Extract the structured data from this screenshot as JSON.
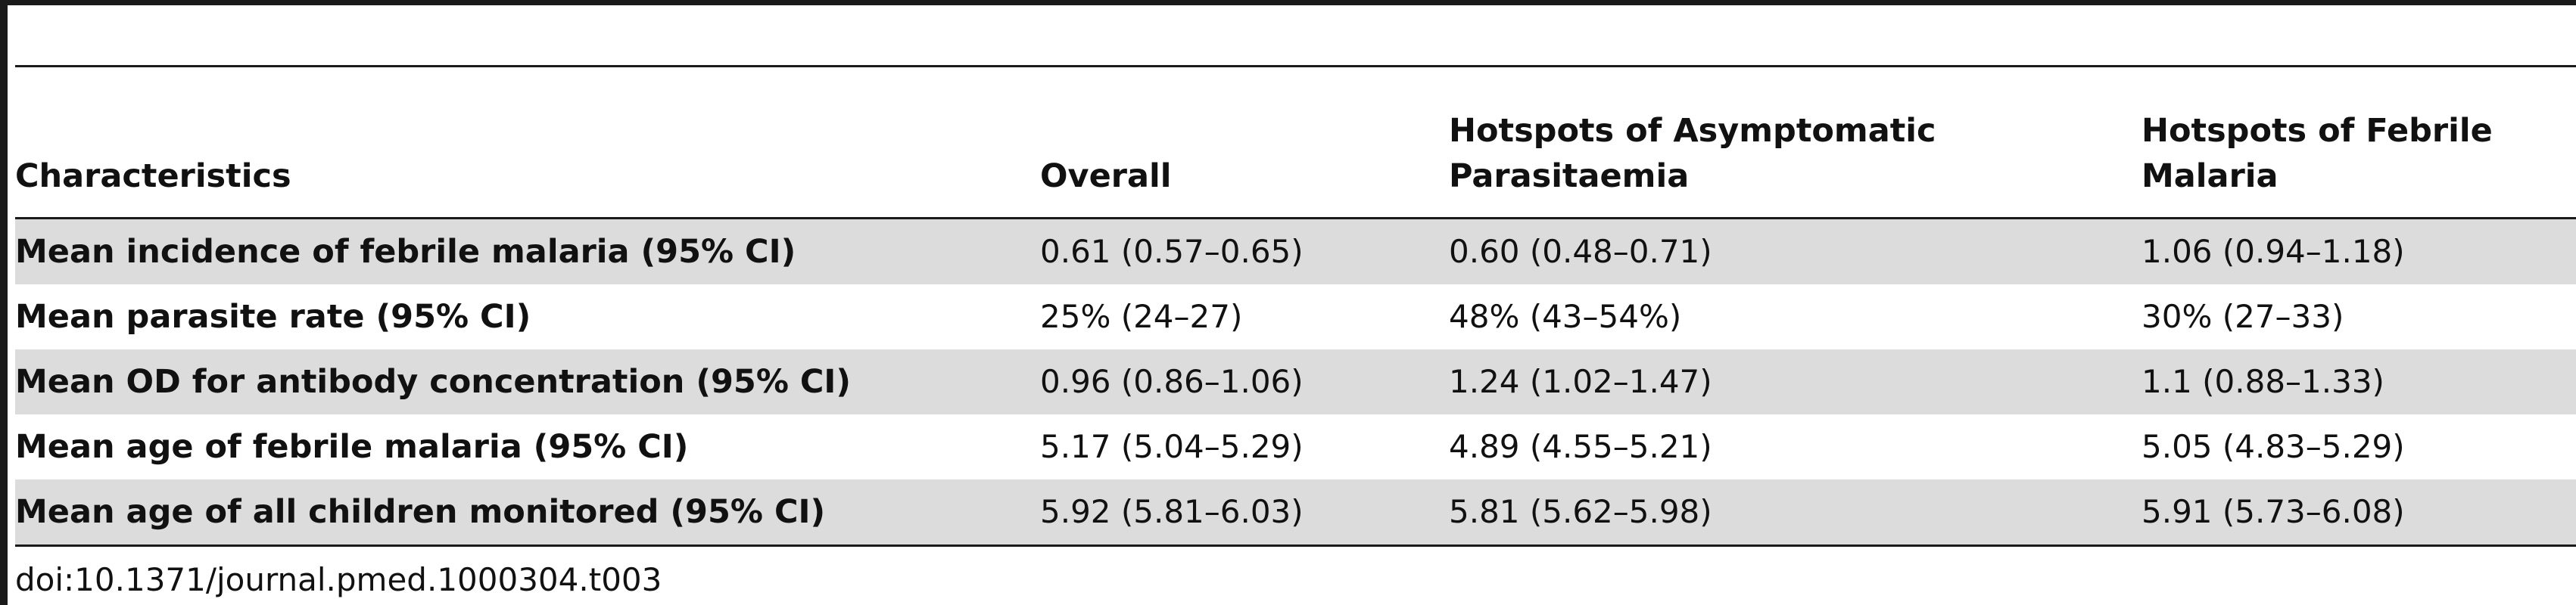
{
  "table": {
    "headers": [
      "Characteristics",
      "Overall",
      "Hotspots of Asymptomatic Parasitaemia",
      "Hotspots of Febrile Malaria"
    ],
    "header_lines": [
      [
        "Characteristics"
      ],
      [
        "Overall"
      ],
      [
        "Hotspots of Asymptomatic",
        "Parasitaemia"
      ],
      [
        "Hotspots of Febrile",
        "Malaria"
      ]
    ],
    "rows": [
      [
        "Mean incidence of febrile malaria (95% CI)",
        "0.61 (0.57–0.65)",
        "0.60 (0.48–0.71)",
        "1.06 (0.94–1.18)"
      ],
      [
        "Mean parasite rate (95% CI)",
        "25% (24–27)",
        "48% (43–54%)",
        "30% (27–33)"
      ],
      [
        "Mean OD for antibody concentration (95% CI)",
        "0.96 (0.86–1.06)",
        "1.24 (1.02–1.47)",
        "1.1 (0.88–1.33)"
      ],
      [
        "Mean age of febrile malaria (95% CI)",
        "5.17 (5.04–5.29)",
        "4.89 (4.55–5.21)",
        "5.05 (4.83–5.29)"
      ],
      [
        "Mean age of all children monitored (95% CI)",
        "5.92 (5.81–6.03)",
        "5.81 (5.62–5.98)",
        "5.91 (5.73–6.08)"
      ]
    ]
  },
  "footnote": "doi:10.1371/journal.pmed.1000304.t003",
  "colors": {
    "row_shade": "#dcdcdc",
    "rule": "#1a1a1a"
  }
}
